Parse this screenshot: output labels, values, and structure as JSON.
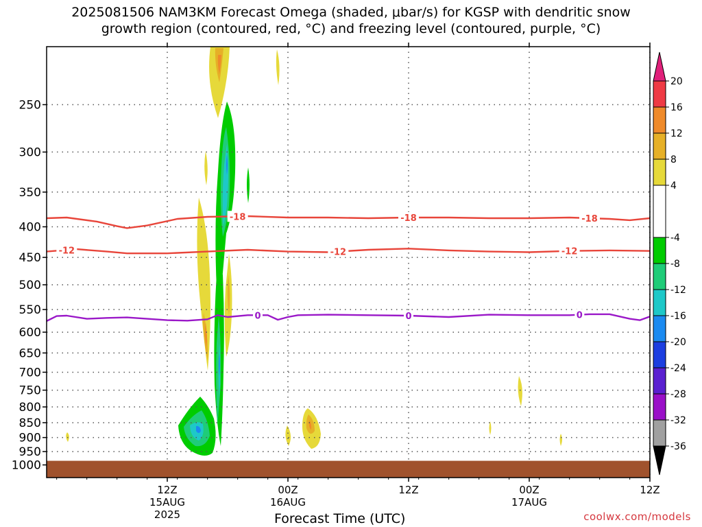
{
  "header": {
    "title_line1": "2025081506 NAM3KM Forecast Omega (shaded, μbar/s) for KGSP with dendritic snow",
    "title_line2": "growth region (contoured, red, °C) and freezing level (contoured, purple, °C)"
  },
  "credit": "coolwx.com/models",
  "colors": {
    "dgz_contour": "#e8453a",
    "freezing_contour": "#9a18c8",
    "ground": "#a0522d",
    "gridline": "#555555"
  },
  "chart_data": {
    "type": "heatmap",
    "title": "2025081506 NAM3KM Forecast Omega (shaded, μbar/s) for KGSP with dendritic snow growth region (contoured, red, °C) and freezing level (contoured, purple, °C)",
    "xlabel": "Forecast Time (UTC)",
    "ylabel": "",
    "x_range_hours": [
      -6,
      54
    ],
    "x_ticks": [
      {
        "hour": 6,
        "label": "12Z",
        "sub1": "15AUG",
        "sub2": "2025"
      },
      {
        "hour": 18,
        "label": "00Z",
        "sub1": "16AUG",
        "sub2": ""
      },
      {
        "hour": 30,
        "label": "12Z",
        "sub1": "",
        "sub2": ""
      },
      {
        "hour": 42,
        "label": "00Z",
        "sub1": "17AUG",
        "sub2": ""
      },
      {
        "hour": 54,
        "label": "12Z",
        "sub1": "",
        "sub2": ""
      }
    ],
    "y_scale": "log-pressure (hPa)",
    "y_range_hpa": [
      1050,
      200
    ],
    "y_ticks": [
      250,
      300,
      350,
      400,
      450,
      500,
      550,
      600,
      650,
      700,
      750,
      800,
      850,
      900,
      950,
      1000
    ],
    "ground_level_hpa": 1000,
    "colorbar": {
      "labels": [
        20,
        16,
        12,
        8,
        4,
        -4,
        -8,
        -12,
        -16,
        -20,
        -24,
        -28,
        -32,
        -36
      ],
      "bins": [
        {
          "range": [
            16,
            20
          ],
          "color": "#ef3a44"
        },
        {
          "range": [
            12,
            16
          ],
          "color": "#ef8a2a"
        },
        {
          "range": [
            8,
            12
          ],
          "color": "#e6b027"
        },
        {
          "range": [
            4,
            8
          ],
          "color": "#e6d93a"
        },
        {
          "range": [
            -4,
            4
          ],
          "color": "#ffffff"
        },
        {
          "range": [
            -8,
            -4
          ],
          "color": "#00cc00"
        },
        {
          "range": [
            -12,
            -8
          ],
          "color": "#1fcc78"
        },
        {
          "range": [
            -16,
            -12
          ],
          "color": "#1ec8c8"
        },
        {
          "range": [
            -20,
            -16
          ],
          "color": "#1b8af0"
        },
        {
          "range": [
            -24,
            -20
          ],
          "color": "#1c3ee0"
        },
        {
          "range": [
            -28,
            -24
          ],
          "color": "#5a20d0"
        },
        {
          "range": [
            -32,
            -28
          ],
          "color": "#9a10c8"
        },
        {
          "range": [
            -36,
            -32
          ],
          "color": "#a0a0a0"
        }
      ],
      "over_color": "#e0207a",
      "under_color": "#000000"
    },
    "contours": [
      {
        "level": -18,
        "label": "-18",
        "color": "#e8453a",
        "points": [
          [
            -6,
            387
          ],
          [
            -4,
            386
          ],
          [
            -1,
            392
          ],
          [
            1,
            399
          ],
          [
            2,
            402
          ],
          [
            4,
            398
          ],
          [
            7,
            388
          ],
          [
            10,
            385
          ],
          [
            14,
            384
          ],
          [
            18,
            386
          ],
          [
            22,
            386
          ],
          [
            26,
            387
          ],
          [
            30,
            386
          ],
          [
            34,
            386
          ],
          [
            38,
            387
          ],
          [
            42,
            387
          ],
          [
            46,
            386
          ],
          [
            50,
            388
          ],
          [
            52,
            390
          ],
          [
            54,
            387
          ]
        ],
        "label_hours": [
          13,
          30,
          48
        ]
      },
      {
        "level": -12,
        "label": "-12",
        "color": "#e8453a",
        "points": [
          [
            -6,
            440
          ],
          [
            -3,
            436
          ],
          [
            0,
            440
          ],
          [
            2,
            443
          ],
          [
            6,
            443
          ],
          [
            10,
            440
          ],
          [
            14,
            437
          ],
          [
            18,
            440
          ],
          [
            22,
            441
          ],
          [
            26,
            437
          ],
          [
            30,
            435
          ],
          [
            34,
            438
          ],
          [
            38,
            440
          ],
          [
            42,
            441
          ],
          [
            46,
            439
          ],
          [
            50,
            438
          ],
          [
            54,
            439
          ]
        ],
        "label_hours": [
          -4,
          23,
          46
        ]
      },
      {
        "level": 0,
        "label": "0",
        "color": "#9a18c8",
        "points": [
          [
            -6,
            575
          ],
          [
            -5,
            564
          ],
          [
            -4,
            563
          ],
          [
            -2,
            570
          ],
          [
            0,
            568
          ],
          [
            2,
            567
          ],
          [
            4,
            570
          ],
          [
            6,
            573
          ],
          [
            8,
            574
          ],
          [
            10,
            571
          ],
          [
            11,
            562
          ],
          [
            12,
            566
          ],
          [
            14,
            562
          ],
          [
            16,
            562
          ],
          [
            17,
            572
          ],
          [
            18,
            566
          ],
          [
            19,
            562
          ],
          [
            22,
            561
          ],
          [
            26,
            562
          ],
          [
            30,
            563
          ],
          [
            34,
            566
          ],
          [
            38,
            561
          ],
          [
            42,
            562
          ],
          [
            46,
            562
          ],
          [
            48,
            560
          ],
          [
            50,
            560
          ],
          [
            52,
            570
          ],
          [
            53,
            573
          ],
          [
            54,
            565
          ]
        ],
        "label_hours": [
          15,
          30,
          47
        ]
      }
    ]
  }
}
